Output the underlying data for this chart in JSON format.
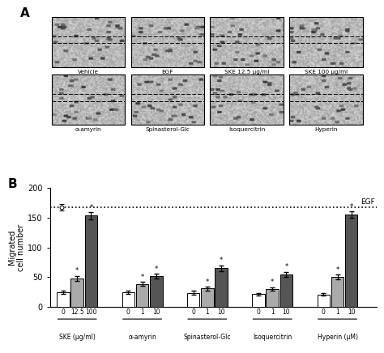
{
  "panel_A": {
    "label": "A",
    "row1_labels": [
      "Vehicle",
      "EGF",
      "SKE 12.5 μg/ml",
      "SKE 100 μg/ml"
    ],
    "row2_labels": [
      "α-amyrin",
      "Spinasterol-Glc",
      "Isoquercitrin",
      "Hyperin"
    ]
  },
  "panel_B": {
    "label": "B",
    "groups": [
      {
        "label": "SKE (μg/ml)",
        "tick_labels": [
          "0",
          "12.5",
          "100"
        ],
        "values": [
          25,
          48,
          153
        ],
        "errors": [
          3,
          4,
          6
        ]
      },
      {
        "label": "α-amyrin",
        "tick_labels": [
          "0",
          "1",
          "10"
        ],
        "values": [
          25,
          39,
          52
        ],
        "errors": [
          3,
          3,
          4
        ]
      },
      {
        "label": "Spinasterol-Glc",
        "tick_labels": [
          "0",
          "1",
          "10"
        ],
        "values": [
          24,
          31,
          65
        ],
        "errors": [
          3,
          3,
          5
        ]
      },
      {
        "label": "Isoquercitrin",
        "tick_labels": [
          "0",
          "1",
          "10"
        ],
        "values": [
          22,
          30,
          55
        ],
        "errors": [
          2,
          3,
          4
        ]
      },
      {
        "label": "Hyperin (μM)",
        "tick_labels": [
          "0",
          "1",
          "10"
        ],
        "values": [
          21,
          50,
          155
        ],
        "errors": [
          2,
          4,
          5
        ]
      }
    ],
    "egf_line": 167,
    "egf_error": 5,
    "ylim": [
      0,
      200
    ],
    "yticks": [
      0,
      50,
      100,
      150,
      200
    ],
    "ylabel": "Migrated\ncell number",
    "bar_colors": [
      "#ffffff",
      "#aaaaaa",
      "#555555"
    ],
    "bar_edge_color": "#000000",
    "egf_label": "EGF"
  }
}
